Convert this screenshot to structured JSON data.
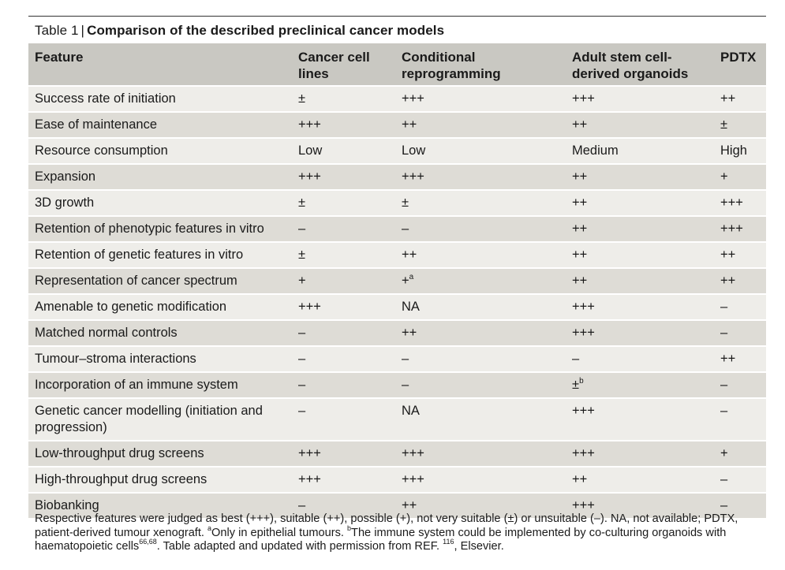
{
  "caption": {
    "label": "Table 1",
    "separator": "|",
    "title": "Comparison of the described preclinical cancer models"
  },
  "table": {
    "headers": [
      "Feature",
      "Cancer cell lines",
      "Conditional reprogramming",
      "Adult stem cell-derived organoids",
      "PDTX"
    ],
    "rows": [
      [
        "Success rate of initiation",
        "±",
        "+++",
        "+++",
        "++"
      ],
      [
        "Ease of maintenance",
        "+++",
        "++",
        "++",
        "±"
      ],
      [
        "Resource consumption",
        "Low",
        "Low",
        "Medium",
        "High"
      ],
      [
        "Expansion",
        "+++",
        "+++",
        "++",
        "+"
      ],
      [
        "3D growth",
        "±",
        "±",
        "++",
        "+++"
      ],
      [
        "Retention of phenotypic features in vitro",
        "–",
        "–",
        "++",
        "+++"
      ],
      [
        "Retention of genetic features in vitro",
        "±",
        "++",
        "++",
        "++"
      ],
      [
        "Representation of cancer spectrum",
        "+",
        "+",
        "++",
        "++"
      ],
      [
        "Amenable to genetic modification",
        "+++",
        "NA",
        "+++",
        "–"
      ],
      [
        "Matched normal controls",
        "–",
        "++",
        "+++",
        "–"
      ],
      [
        "Tumour–stroma interactions",
        "–",
        "–",
        "–",
        "++"
      ],
      [
        "Incorporation of an immune system",
        "–",
        "–",
        "±",
        "–"
      ],
      [
        "Genetic cancer modelling (initiation and progression)",
        "–",
        "NA",
        "+++",
        "–"
      ],
      [
        "Low-throughput drug screens",
        "+++",
        "+++",
        "+++",
        "+"
      ],
      [
        "High-throughput drug screens",
        "+++",
        "+++",
        "++",
        "–"
      ],
      [
        "Biobanking",
        "–",
        "++",
        "+++",
        "–"
      ]
    ],
    "superscripts": {
      "r7c2": "a",
      "r11c3": "b"
    }
  },
  "footnote": {
    "line1": "Respective features were judged as best (+++), suitable (++), possible (+), not very suitable (±) or unsuitable (–). NA, not available; PDTX, patient-derived tumour xenograft. ",
    "sup_a": "a",
    "note_a": "Only in epithelial tumours. ",
    "sup_b": "b",
    "note_b": "The immune system could be implemented by co-culturing organoids with haematopoietic cells",
    "ref1": "66,68",
    "mid": ". Table adapted and updated with permission from REF. ",
    "ref2": "116",
    "end": ", Elsevier."
  }
}
